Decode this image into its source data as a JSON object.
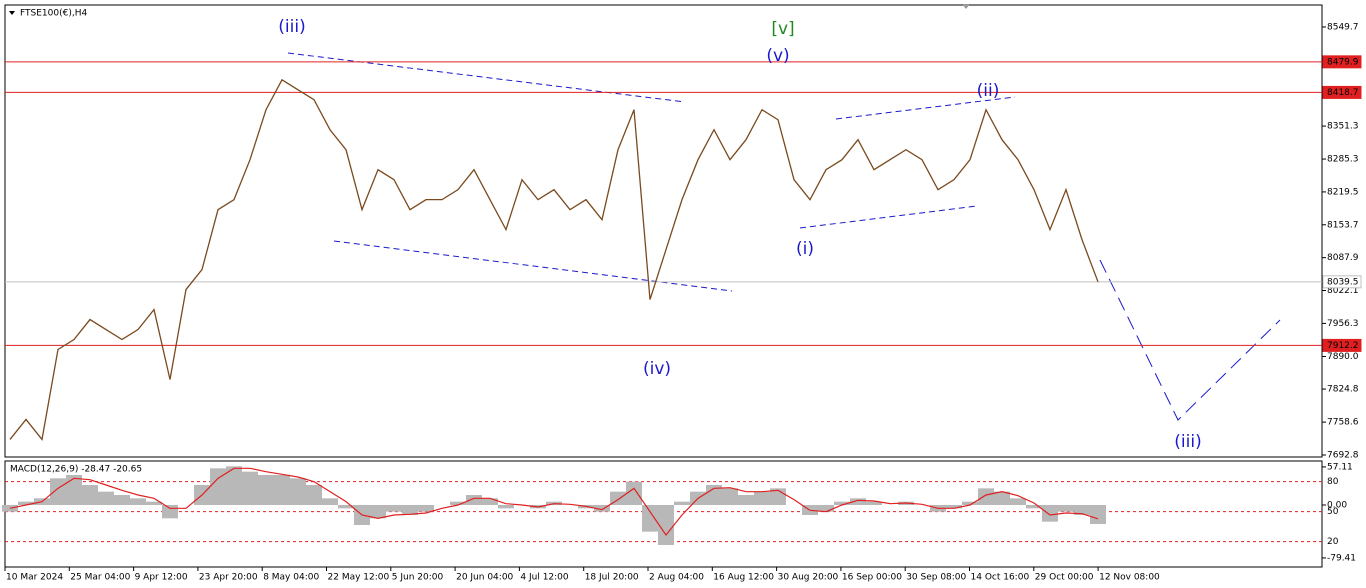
{
  "chart_data": {
    "type": "line",
    "title": "FTSE100(€),H4",
    "series": [
      {
        "name": "FTSE100(€)",
        "color": "#7a4a1e",
        "values": [
          7724,
          7764,
          7724,
          7904,
          7924,
          7964,
          7944,
          7924,
          7944,
          7984,
          7844,
          8024,
          8064,
          8184,
          8204,
          8284,
          8384,
          8444,
          8424,
          8404,
          8344,
          8304,
          8184,
          8264,
          8244,
          8184,
          8204,
          8204,
          8224,
          8264,
          8204,
          8144,
          8244,
          8204,
          8224,
          8184,
          8204,
          8164,
          8304,
          8384,
          8004,
          8104,
          8204,
          8284,
          8344,
          8284,
          8324,
          8384,
          8364,
          8244,
          8204,
          8264,
          8284,
          8324,
          8264,
          8284,
          8304,
          8284,
          8224,
          8244,
          8284,
          8384,
          8324,
          8284,
          8224,
          8144,
          8224,
          8124,
          8039.5
        ]
      }
    ],
    "xticks": [
      "10 Mar 2024",
      "25 Mar 04:00",
      "9 Apr 12:00",
      "23 Apr 20:00",
      "8 May 04:00",
      "22 May 12:00",
      "5 Jun 20:00",
      "20 Jun 04:00",
      "4 Jul 12:00",
      "18 Jul 20:00",
      "2 Aug 04:00",
      "16 Aug 12:00",
      "30 Aug 20:00",
      "16 Sep 00:00",
      "30 Sep 08:00",
      "14 Oct 16:00",
      "29 Oct 00:00",
      "12 Nov 08:00"
    ],
    "ylim": [
      7688.8,
      8593.7
    ],
    "yticks": [
      8549.7,
      8351.3,
      8285.3,
      8219.5,
      8153.7,
      8087.9,
      8022.1,
      7956.3,
      {
        "value": 7890,
        "label": "7890.0"
      },
      7824.8,
      7758.6,
      7692.8
    ],
    "hlines": [
      {
        "value": 8479.9,
        "color": "#e02020"
      },
      {
        "value": 8418.7,
        "color": "#e02020"
      },
      {
        "value": 8039.5,
        "color": "#c0c0c0"
      },
      {
        "value": 7912.2,
        "color": "#e02020"
      }
    ],
    "annotations": [
      {
        "text": "(iii)",
        "color": "#1a1acc"
      },
      {
        "text": "[v]",
        "color": "#1f8a1f"
      },
      {
        "text": "(v)",
        "color": "#1a1acc"
      },
      {
        "text": "(ii)",
        "color": "#1a1acc"
      },
      {
        "text": "(i)",
        "color": "#1a1acc"
      },
      {
        "text": "(iv)",
        "color": "#1a1acc"
      },
      {
        "text": "(iii)",
        "color": "#1a1acc"
      }
    ],
    "macd": {
      "title": "MACD(12,26,9) -28.47 -20.65",
      "ylim": [
        -93,
        66
      ],
      "yticks": [
        57.11,
        {
          "value": 0,
          "label": "0.00"
        },
        -79.41
      ],
      "levels": [
        {
          "value": 35,
          "label": "80"
        },
        {
          "value": -10,
          "label": "50"
        },
        {
          "value": -55,
          "label": "20"
        }
      ],
      "histogram": {
        "color": "#b8b8b8",
        "values": [
          -10,
          5,
          10,
          40,
          45,
          30,
          20,
          15,
          10,
          5,
          -20,
          0,
          30,
          55,
          58,
          50,
          45,
          45,
          40,
          30,
          10,
          -5,
          -30,
          -20,
          -10,
          -15,
          -10,
          0,
          5,
          15,
          10,
          -5,
          0,
          -5,
          5,
          0,
          -5,
          -10,
          20,
          35,
          -40,
          -60,
          5,
          20,
          30,
          25,
          15,
          20,
          25,
          0,
          -15,
          -10,
          5,
          10,
          5,
          0,
          5,
          0,
          -10,
          -5,
          5,
          25,
          20,
          10,
          -5,
          -25,
          -10,
          -15,
          -28.47
        ]
      },
      "signal": {
        "color": "#e02020",
        "values": [
          -5,
          0,
          5,
          25,
          40,
          38,
          30,
          22,
          15,
          10,
          -5,
          -5,
          15,
          40,
          55,
          55,
          50,
          46,
          42,
          35,
          20,
          5,
          -15,
          -20,
          -15,
          -14,
          -12,
          -5,
          0,
          10,
          10,
          2,
          0,
          -3,
          2,
          1,
          -2,
          -7,
          8,
          25,
          -10,
          -45,
          -15,
          10,
          25,
          26,
          20,
          20,
          22,
          8,
          -8,
          -10,
          0,
          7,
          6,
          2,
          3,
          1,
          -5,
          -5,
          0,
          15,
          20,
          14,
          3,
          -15,
          -12,
          -13,
          -20.65
        ]
      }
    }
  }
}
